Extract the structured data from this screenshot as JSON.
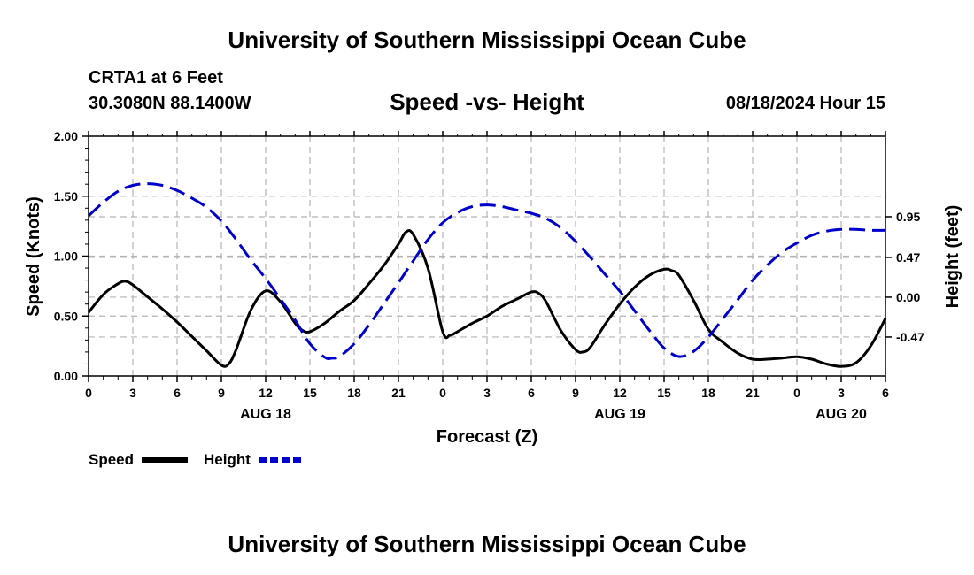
{
  "header": {
    "title": "University of Southern Mississippi Ocean Cube",
    "station": "CRTA1 at 6 Feet",
    "coords": "30.3080N  88.1400W",
    "chart_title": "Speed -vs- Height",
    "datetime": "08/18/2024 Hour 15"
  },
  "footer": {
    "title": "University of Southern Mississippi Ocean Cube"
  },
  "colors": {
    "speed": "#000000",
    "height": "#0000cc",
    "grid": "#b4b4b4"
  },
  "chart_data": {
    "type": "line",
    "title": "Speed -vs- Height",
    "xlabel": "Forecast (Z)",
    "ylabel": "Speed (Knots)",
    "y2label": "Height (feet)",
    "xlim": [
      0,
      54
    ],
    "ylim": [
      0,
      2
    ],
    "y2lim": [
      -0.93,
      1.9
    ],
    "x_ticks": [
      0,
      3,
      6,
      9,
      12,
      15,
      18,
      21,
      24,
      27,
      30,
      33,
      36,
      39,
      42,
      45,
      48,
      51,
      54
    ],
    "x_tick_labels": [
      "0",
      "3",
      "6",
      "9",
      "12",
      "15",
      "18",
      "21",
      "0",
      "3",
      "6",
      "9",
      "12",
      "15",
      "18",
      "21",
      "0",
      "3",
      "6"
    ],
    "y_ticks": [
      0,
      0.5,
      1,
      1.5,
      2
    ],
    "y_tick_labels": [
      "0.00",
      "0.50",
      "1.00",
      "1.50",
      "2.00"
    ],
    "y2_ticks": [
      -0.47,
      0,
      0.47,
      0.95
    ],
    "y2_tick_labels": [
      "-0.47",
      "0.00",
      "0.47",
      "0.95"
    ],
    "day_labels": [
      {
        "x": 12,
        "label": "AUG 18"
      },
      {
        "x": 36,
        "label": "AUG 19"
      },
      {
        "x": 51,
        "label": "AUG 20"
      }
    ],
    "grid": true,
    "series": [
      {
        "name": "Speed",
        "axis": "left",
        "style": "solid",
        "x": [
          0,
          1,
          2,
          2.5,
          3,
          4,
          5,
          6,
          7,
          8,
          9,
          9.5,
          10,
          11,
          12,
          13,
          14,
          14.5,
          15,
          16,
          17,
          18,
          19,
          20,
          21,
          21.5,
          22,
          23,
          24,
          24.5,
          25,
          26,
          27,
          28,
          29,
          30,
          30.5,
          31,
          32,
          33,
          33.5,
          34,
          35,
          36,
          37,
          38,
          39,
          39.5,
          40,
          41,
          42,
          43,
          44,
          45,
          46,
          47,
          48,
          49,
          50,
          51,
          52,
          53,
          54
        ],
        "values": [
          0.53,
          0.68,
          0.77,
          0.79,
          0.76,
          0.66,
          0.56,
          0.45,
          0.33,
          0.21,
          0.09,
          0.1,
          0.22,
          0.55,
          0.71,
          0.62,
          0.44,
          0.38,
          0.37,
          0.44,
          0.54,
          0.63,
          0.77,
          0.92,
          1.1,
          1.2,
          1.18,
          0.9,
          0.37,
          0.34,
          0.37,
          0.44,
          0.5,
          0.58,
          0.64,
          0.7,
          0.69,
          0.62,
          0.38,
          0.22,
          0.2,
          0.24,
          0.43,
          0.6,
          0.74,
          0.84,
          0.89,
          0.88,
          0.84,
          0.63,
          0.39,
          0.28,
          0.19,
          0.14,
          0.14,
          0.15,
          0.16,
          0.14,
          0.1,
          0.08,
          0.11,
          0.25,
          0.48
        ]
      },
      {
        "name": "Height",
        "axis": "right",
        "style": "dashed",
        "x": [
          0,
          1,
          2,
          3,
          4,
          5,
          6,
          7,
          8,
          9,
          10,
          11,
          12,
          13,
          14,
          15,
          16,
          16.5,
          17,
          18,
          19,
          20,
          21,
          22,
          23,
          24,
          25,
          26,
          27,
          28,
          29,
          30,
          31,
          32,
          33,
          34,
          35,
          36,
          37,
          38,
          39,
          40,
          41,
          42,
          43,
          44,
          45,
          46,
          47,
          48,
          49,
          50,
          51,
          52,
          53,
          54
        ],
        "values": [
          0.96,
          1.12,
          1.25,
          1.32,
          1.34,
          1.32,
          1.26,
          1.17,
          1.06,
          0.9,
          0.68,
          0.44,
          0.22,
          -0.02,
          -0.27,
          -0.55,
          -0.71,
          -0.72,
          -0.7,
          -0.55,
          -0.33,
          -0.08,
          0.17,
          0.43,
          0.68,
          0.88,
          1.0,
          1.07,
          1.09,
          1.07,
          1.03,
          0.99,
          0.93,
          0.82,
          0.66,
          0.47,
          0.27,
          0.07,
          -0.16,
          -0.39,
          -0.6,
          -0.7,
          -0.64,
          -0.47,
          -0.25,
          -0.03,
          0.2,
          0.38,
          0.53,
          0.64,
          0.73,
          0.78,
          0.8,
          0.8,
          0.79,
          0.79
        ]
      }
    ],
    "legend": [
      {
        "label": "Speed",
        "style": "solid"
      },
      {
        "label": "Height",
        "style": "dashed"
      }
    ],
    "legend_position": "bottom-left"
  }
}
